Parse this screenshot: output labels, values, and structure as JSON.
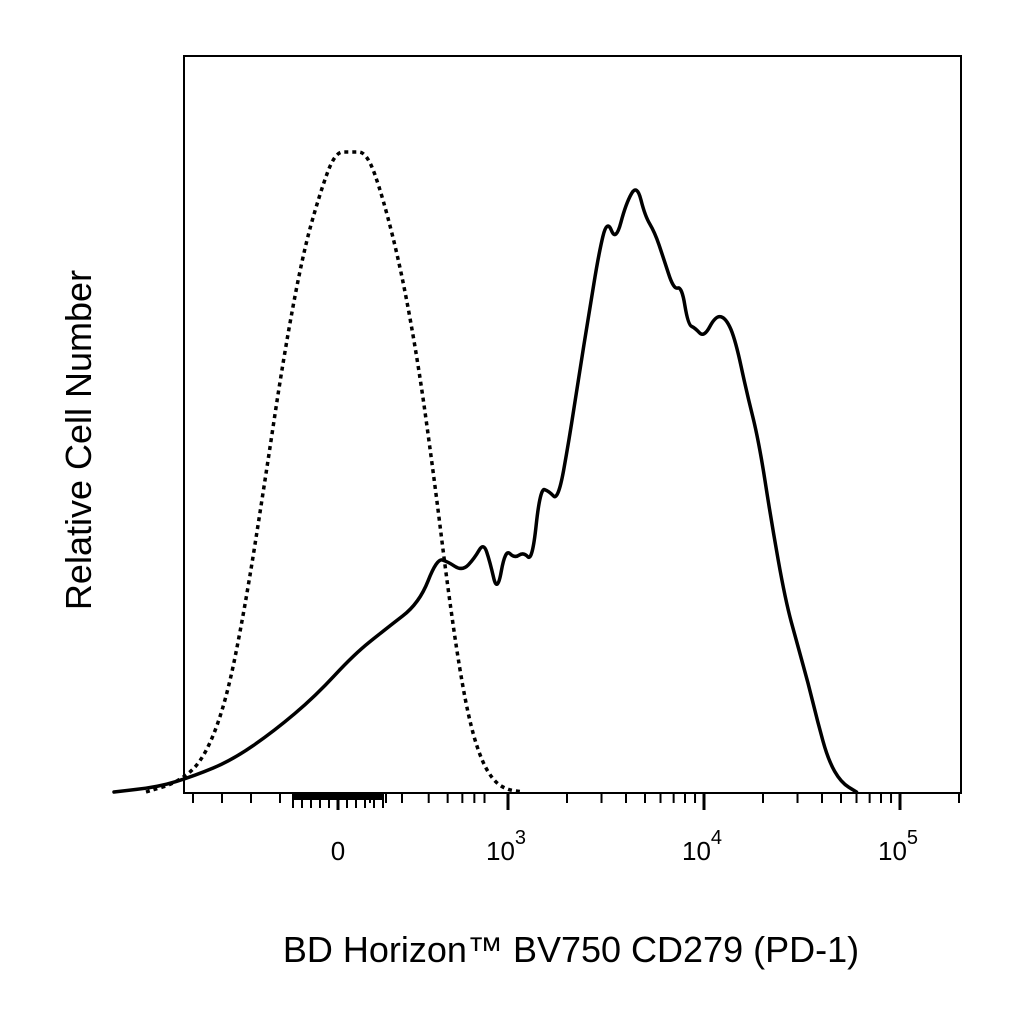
{
  "chart_data": {
    "type": "line",
    "title": "",
    "xlabel": "BD Horizon™ BV750 CD279 (PD-1)",
    "ylabel": "Relative Cell Number",
    "x_scale": "biexponential",
    "x_tick_labels": [
      {
        "base": "0",
        "exp": "",
        "value": 0
      },
      {
        "base": "10",
        "exp": "3",
        "value": 1000
      },
      {
        "base": "10",
        "exp": "4",
        "value": 10000
      },
      {
        "base": "10",
        "exp": "5",
        "value": 100000
      }
    ],
    "xlim": [
      -1000,
      250000
    ],
    "ylim": [
      0,
      100
    ],
    "grid": false,
    "legend": "none",
    "colors": {
      "stroke": "#000000",
      "frame": "#000000",
      "background": "#ffffff"
    },
    "series": [
      {
        "style": "dotted",
        "points": [
          [
            -600,
            0
          ],
          [
            -500,
            1.5
          ],
          [
            -420,
            5
          ],
          [
            -350,
            14
          ],
          [
            -290,
            29
          ],
          [
            -230,
            48
          ],
          [
            -170,
            68
          ],
          [
            -110,
            84
          ],
          [
            -60,
            93
          ],
          [
            -10,
            100
          ],
          [
            40,
            100
          ],
          [
            90,
            100
          ],
          [
            140,
            93
          ],
          [
            200,
            81
          ],
          [
            260,
            66
          ],
          [
            330,
            48
          ],
          [
            400,
            32
          ],
          [
            480,
            19
          ],
          [
            570,
            10
          ],
          [
            680,
            4.5
          ],
          [
            820,
            1.5
          ],
          [
            1000,
            0.3
          ],
          [
            1200,
            0
          ]
        ]
      },
      {
        "style": "solid",
        "points": [
          [
            -700,
            0
          ],
          [
            -560,
            0.8
          ],
          [
            -450,
            2.5
          ],
          [
            -330,
            5
          ],
          [
            -200,
            9.5
          ],
          [
            -70,
            15
          ],
          [
            50,
            21.5
          ],
          [
            150,
            25.5
          ],
          [
            260,
            29.5
          ],
          [
            340,
            36.5
          ],
          [
            400,
            36
          ],
          [
            500,
            34.5
          ],
          [
            600,
            36.5
          ],
          [
            690,
            39
          ],
          [
            760,
            36
          ],
          [
            850,
            31
          ],
          [
            960,
            38
          ],
          [
            1080,
            36.5
          ],
          [
            1200,
            37.5
          ],
          [
            1330,
            36
          ],
          [
            1460,
            47.5
          ],
          [
            1620,
            47
          ],
          [
            1800,
            45.5
          ],
          [
            2050,
            55
          ],
          [
            2300,
            65
          ],
          [
            2580,
            74.5
          ],
          [
            2900,
            84
          ],
          [
            3200,
            89.5
          ],
          [
            3550,
            86
          ],
          [
            4000,
            92
          ],
          [
            4550,
            95
          ],
          [
            5000,
            90
          ],
          [
            5600,
            87.5
          ],
          [
            6200,
            83.5
          ],
          [
            7000,
            78.5
          ],
          [
            7700,
            79
          ],
          [
            8300,
            73
          ],
          [
            9000,
            72.5
          ],
          [
            10000,
            71
          ],
          [
            11500,
            74.5
          ],
          [
            13000,
            74
          ],
          [
            14500,
            70.5
          ],
          [
            16500,
            62.5
          ],
          [
            19000,
            55
          ],
          [
            22000,
            42.5
          ],
          [
            26000,
            30
          ],
          [
            30000,
            23
          ],
          [
            34000,
            17
          ],
          [
            38000,
            11
          ],
          [
            43000,
            5
          ],
          [
            50000,
            1.5
          ],
          [
            60000,
            0
          ]
        ]
      }
    ]
  }
}
